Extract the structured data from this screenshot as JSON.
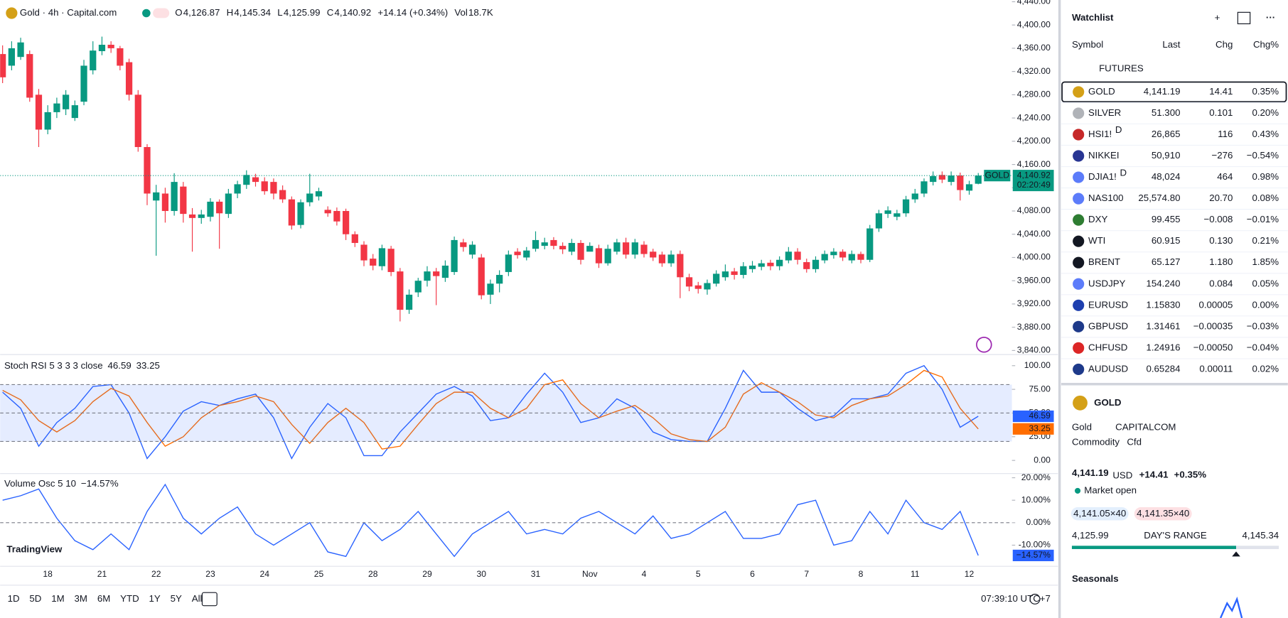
{
  "header": {
    "symbol": "Gold · 4h · Capital.com",
    "stats": [
      {
        "label": "O",
        "value": "4,126.87"
      },
      {
        "label": "H",
        "value": "4,145.34"
      },
      {
        "label": "L",
        "value": "4,125.99"
      },
      {
        "label": "C",
        "value": "4,140.92"
      },
      {
        "label": "",
        "value": "+14.14 (+0.34%)"
      },
      {
        "label": "Vol",
        "value": "18.7K"
      }
    ]
  },
  "chart_data": [
    {
      "type": "candlestick",
      "up_color": "#089981",
      "down_color": "#f23645",
      "grid": false,
      "ylim": [
        3833,
        4443
      ],
      "yticks": [
        {
          "value": 4440,
          "label": "4,440.00"
        },
        {
          "value": 4400,
          "label": "4,400.00"
        },
        {
          "value": 4360,
          "label": "4,360.00"
        },
        {
          "value": 4320,
          "label": "4,320.00"
        },
        {
          "value": 4280,
          "label": "4,280.00"
        },
        {
          "value": 4240,
          "label": "4,240.00"
        },
        {
          "value": 4200,
          "label": "4,200.00"
        },
        {
          "value": 4160,
          "label": "4,160.00"
        },
        {
          "value": 4120,
          "label": "4,120.00"
        },
        {
          "value": 4080,
          "label": "4,080.00"
        },
        {
          "value": 4040,
          "label": "4,040.00"
        },
        {
          "value": 4000,
          "label": "4,000.00"
        },
        {
          "value": 3960,
          "label": "3,960.00"
        },
        {
          "value": 3920,
          "label": "3,920.00"
        },
        {
          "value": 3880,
          "label": "3,880.00"
        },
        {
          "value": 3840,
          "label": "3,840.00"
        }
      ],
      "categories": [
        null,
        null,
        null,
        null,
        null,
        "18",
        null,
        null,
        null,
        null,
        null,
        "21",
        null,
        null,
        null,
        null,
        null,
        "22",
        null,
        null,
        null,
        null,
        null,
        "23",
        null,
        null,
        null,
        null,
        null,
        "24",
        null,
        null,
        null,
        null,
        null,
        "25",
        null,
        null,
        null,
        null,
        null,
        "28",
        null,
        null,
        null,
        null,
        null,
        "29",
        null,
        null,
        null,
        null,
        null,
        "30",
        null,
        null,
        null,
        null,
        null,
        "31",
        null,
        null,
        null,
        null,
        null,
        "Nov",
        null,
        null,
        null,
        null,
        null,
        "4",
        null,
        null,
        null,
        null,
        null,
        "5",
        null,
        null,
        null,
        null,
        null,
        "6",
        null,
        null,
        null,
        null,
        null,
        "7",
        null,
        null,
        null,
        null,
        null,
        "8",
        null,
        null,
        null,
        null,
        null,
        "11",
        null,
        null,
        null,
        null,
        null,
        "12",
        null
      ],
      "open": [
        4350,
        4330,
        4345,
        4350,
        4280,
        4220,
        4250,
        4255,
        4240,
        4268,
        4322,
        4355,
        4366,
        4360,
        4336,
        4280,
        4190,
        4098,
        4110,
        4080,
        4122,
        4074,
        4068,
        4070,
        4096,
        4075,
        4110,
        4125,
        4138,
        4131,
        4130,
        4116,
        4100,
        4056,
        4095,
        4105,
        4082,
        4080,
        4080,
        4040,
        4022,
        3998,
        3985,
        4015,
        3976,
        3910,
        3940,
        3960,
        3976,
        3965,
        3975,
        4026,
        4005,
        4000,
        3936,
        3955,
        3975,
        4010,
        4000,
        4015,
        4020,
        4030,
        4020,
        4010,
        4025,
        4010,
        4016,
        3990,
        4010,
        4026,
        4005,
        4022,
        4010,
        4005,
        3990,
        4006,
        3966,
        3952,
        3945,
        3955,
        3966,
        3976,
        3970,
        3980,
        3984,
        3991,
        3985,
        3995,
        4010,
        3992,
        3980,
        3995,
        4004,
        4010,
        3995,
        4006,
        3996,
        4050,
        4075,
        4070,
        4076,
        4100,
        4110,
        4130,
        4142,
        4130,
        4141,
        4115,
        4126.87
      ],
      "high": [
        4365,
        4372,
        4378,
        4356,
        4290,
        4262,
        4275,
        4288,
        4270,
        4340,
        4372,
        4380,
        4372,
        4364,
        4342,
        4288,
        4195,
        4125,
        4120,
        4145,
        4130,
        4085,
        4082,
        4102,
        4100,
        4118,
        4132,
        4150,
        4144,
        4138,
        4136,
        4124,
        4105,
        4100,
        4144,
        4120,
        4088,
        4086,
        4084,
        4045,
        4028,
        4006,
        4022,
        4020,
        3982,
        3945,
        3965,
        3985,
        3982,
        3995,
        4036,
        4032,
        4028,
        4006,
        3962,
        3978,
        4012,
        4016,
        4018,
        4045,
        4034,
        4035,
        4026,
        4032,
        4030,
        4026,
        4022,
        4022,
        4032,
        4034,
        4032,
        4028,
        4015,
        4010,
        4012,
        4012,
        3972,
        3958,
        3962,
        3978,
        3988,
        3982,
        3992,
        3994,
        3996,
        3996,
        4002,
        4018,
        4016,
        3998,
        4002,
        4012,
        4016,
        4014,
        4012,
        4010,
        4056,
        4082,
        4088,
        4082,
        4106,
        4118,
        4136,
        4148,
        4148,
        4148,
        4146,
        4132,
        4145.34
      ],
      "low": [
        4300,
        4322,
        4340,
        4268,
        4190,
        4212,
        4240,
        4245,
        4235,
        4262,
        4315,
        4348,
        4352,
        4322,
        4270,
        4182,
        4090,
        4003,
        4060,
        4072,
        4060,
        4010,
        4058,
        4062,
        4015,
        4068,
        4102,
        4118,
        4122,
        4108,
        4100,
        4094,
        4048,
        4050,
        4088,
        4098,
        4070,
        4055,
        4030,
        4018,
        3985,
        3978,
        3978,
        3968,
        3890,
        3903,
        3932,
        3950,
        3918,
        3958,
        3970,
        4010,
        3998,
        3928,
        3920,
        3940,
        3968,
        3998,
        3995,
        4010,
        4014,
        4014,
        4006,
        4004,
        3988,
        4012,
        3982,
        3986,
        4005,
        3998,
        3998,
        4000,
        3994,
        3984,
        3984,
        3930,
        3942,
        3938,
        3936,
        3950,
        3960,
        3962,
        3964,
        3974,
        3978,
        3978,
        3978,
        3990,
        3988,
        3974,
        3974,
        3990,
        3998,
        3994,
        3990,
        3990,
        3992,
        4044,
        4068,
        4064,
        4070,
        4094,
        4104,
        4124,
        4128,
        4124,
        4098,
        4108,
        4125.99
      ],
      "close": [
        4310,
        4360,
        4370,
        4275,
        4220,
        4250,
        4265,
        4280,
        4262,
        4330,
        4356,
        4366,
        4360,
        4330,
        4280,
        4190,
        4110,
        4112,
        4080,
        4130,
        4075,
        4068,
        4074,
        4096,
        4076,
        4110,
        4126,
        4142,
        4130,
        4114,
        4110,
        4100,
        4055,
        4095,
        4110,
        4114,
        4076,
        4062,
        4040,
        4025,
        3995,
        3986,
        4016,
        3975,
        3910,
        3936,
        3960,
        3976,
        3968,
        3986,
        4030,
        4018,
        4022,
        3935,
        3955,
        3970,
        4005,
        4004,
        4012,
        4030,
        4026,
        4020,
        4014,
        4025,
        3996,
        4020,
        3990,
        4015,
        4026,
        4005,
        4026,
        4006,
        4000,
        3990,
        4005,
        3966,
        3950,
        3946,
        3956,
        3972,
        3976,
        3970,
        3985,
        3986,
        3990,
        3985,
        3996,
        4010,
        3996,
        3980,
        3996,
        4006,
        4010,
        4000,
        4006,
        3996,
        4050,
        4076,
        4081,
        4076,
        4100,
        4110,
        4131,
        4140,
        4134,
        4141,
        4116,
        4126,
        4140.92
      ],
      "current_price": {
        "value": 4140.92,
        "label": "4,140.92"
      },
      "countdown": "02:20:49",
      "symbol_badge": "GOLD"
    },
    {
      "type": "line",
      "title": "Stoch RSI 5 3 3 3 close",
      "ylim": [
        -13,
        110
      ],
      "yticks": [
        {
          "value": 100,
          "label": "100.00"
        },
        {
          "value": 75,
          "label": "75.00"
        },
        {
          "value": 50,
          "label": "50.00"
        },
        {
          "value": 25,
          "label": "25.00"
        },
        {
          "value": 0,
          "label": "0.00"
        }
      ],
      "hlines": [
        80,
        50,
        20
      ],
      "band_color": "#2962ff1f",
      "series": [
        {
          "color": "#2962ff",
          "values": [
            72,
            55,
            15,
            40,
            55,
            78,
            80,
            50,
            2,
            25,
            52,
            62,
            58,
            65,
            70,
            45,
            2,
            35,
            60,
            45,
            5,
            5,
            30,
            50,
            70,
            78,
            68,
            42,
            45,
            70,
            92,
            72,
            40,
            45,
            65,
            55,
            30,
            22,
            20,
            20,
            55,
            95,
            72,
            72,
            55,
            42,
            47,
            65,
            65,
            70,
            92,
            100,
            75,
            35,
            46.59
          ]
        },
        {
          "color": "#ff6d00",
          "values": [
            74,
            64,
            42,
            30,
            42,
            62,
            76,
            68,
            40,
            15,
            25,
            45,
            58,
            62,
            68,
            62,
            38,
            18,
            40,
            55,
            40,
            12,
            15,
            38,
            60,
            72,
            72,
            55,
            45,
            55,
            80,
            85,
            60,
            45,
            52,
            58,
            45,
            28,
            22,
            20,
            35,
            70,
            82,
            72,
            62,
            48,
            45,
            58,
            65,
            68,
            80,
            95,
            88,
            55,
            33.25
          ]
        }
      ]
    },
    {
      "type": "line",
      "title": "Volume Osc 5 10",
      "ylim": [
        -19.4,
        21.5
      ],
      "yticks": [
        {
          "value": 20,
          "label": "20.00%"
        },
        {
          "value": 10,
          "label": "10.00%"
        },
        {
          "value": 0,
          "label": "0.00%"
        },
        {
          "value": -10,
          "label": "-10.00%"
        }
      ],
      "hlines": [
        0
      ],
      "series": [
        {
          "color": "#2962ff",
          "values": [
            10,
            12,
            15,
            2,
            -8,
            -12,
            -5,
            -12,
            5,
            17,
            2,
            -5,
            2,
            7,
            -5,
            -10,
            -5,
            0,
            -13,
            -15,
            0,
            -8,
            -3,
            5,
            -5,
            -15,
            -5,
            0,
            5,
            -5,
            -3,
            -5,
            2,
            5,
            0,
            -5,
            3,
            -7,
            -5,
            0,
            5,
            -7,
            -7,
            -5,
            8,
            10,
            -10,
            -8,
            5,
            -5,
            10,
            0,
            -3,
            5,
            -14.57
          ],
          "last_label": "−14.57%"
        }
      ]
    }
  ],
  "toolbar": {
    "logo": "TradingView",
    "ranges": [
      "1D",
      "5D",
      "1M",
      "3M",
      "6M",
      "YTD",
      "1Y",
      "5Y",
      "All"
    ],
    "time": "07:39:10 UTC+7"
  },
  "watchlist": {
    "title": "Watchlist",
    "columns": [
      "Symbol",
      "Last",
      "Chg",
      "Chg%"
    ],
    "group": "FUTURES",
    "up_color": "#089981",
    "down_color": "#f23645",
    "rows": [
      {
        "symbol": "GOLD",
        "last": "4,141.19",
        "chg": "14.41",
        "chg_pct": "0.35%",
        "trend": "up",
        "icon_color": "#d4a017"
      },
      {
        "symbol": "SILVER",
        "last": "51.300",
        "chg": "0.101",
        "chg_pct": "0.20%",
        "trend": "up",
        "icon_color": "#b0b3b8"
      },
      {
        "symbol": "HSI1!",
        "flag": "D",
        "last": "26,865",
        "chg": "116",
        "chg_pct": "0.43%",
        "trend": "up",
        "icon_color": "#c62828"
      },
      {
        "symbol": "NIKKEI",
        "last": "50,910",
        "chg": "−276",
        "chg_pct": "−0.54%",
        "trend": "down",
        "icon_color": "#283593"
      },
      {
        "symbol": "DJIA1!",
        "flag": "D",
        "last": "48,024",
        "chg": "464",
        "chg_pct": "0.98%",
        "trend": "up",
        "icon_color": "#5c7cfa"
      },
      {
        "symbol": "NAS100",
        "last": "25,574.80",
        "chg": "20.70",
        "chg_pct": "0.08%",
        "trend": "up",
        "icon_color": "#5c7cfa"
      },
      {
        "symbol": "DXY",
        "last": "99.455",
        "chg": "−0.008",
        "chg_pct": "−0.01%",
        "trend": "down",
        "icon_color": "#2e7d32"
      },
      {
        "symbol": "WTI",
        "last": "60.915",
        "chg": "0.130",
        "chg_pct": "0.21%",
        "trend": "up",
        "icon_color": "#131722"
      },
      {
        "symbol": "BRENT",
        "last": "65.127",
        "chg": "1.180",
        "chg_pct": "1.85%",
        "trend": "up",
        "icon_color": "#131722"
      },
      {
        "symbol": "USDJPY",
        "last": "154.240",
        "chg": "0.084",
        "chg_pct": "0.05%",
        "trend": "up",
        "icon_color": "#5c7cfa"
      },
      {
        "symbol": "EURUSD",
        "last": "1.15830",
        "chg": "0.00005",
        "chg_pct": "0.00%",
        "trend": "up",
        "icon_color": "#1e40af"
      },
      {
        "symbol": "GBPUSD",
        "last": "1.31461",
        "chg": "−0.00035",
        "chg_pct": "−0.03%",
        "trend": "down",
        "icon_color": "#1e3a8a"
      },
      {
        "symbol": "CHFUSD",
        "last": "1.24916",
        "chg": "−0.00050",
        "chg_pct": "−0.04%",
        "trend": "down",
        "icon_color": "#dc2626"
      },
      {
        "symbol": "AUDUSD",
        "last": "0.65284",
        "chg": "0.00011",
        "chg_pct": "0.02%",
        "trend": "up",
        "icon_color": "#1e3a8a"
      }
    ]
  },
  "details": {
    "symbol": "GOLD",
    "name": "Gold",
    "exchange": "CAPITALCOM",
    "kind": "Commodity",
    "subtype": "Cfd",
    "price": "4,141.19",
    "currency": "USD",
    "change": "+14.41",
    "change_pct": "+0.35%",
    "status": "Market open",
    "bid": "4,141.05×40",
    "ask": "4,141.35×40",
    "low": "4,125.99",
    "range_label": "DAY'S RANGE",
    "high": "4,145.34",
    "section": "Seasonals"
  }
}
